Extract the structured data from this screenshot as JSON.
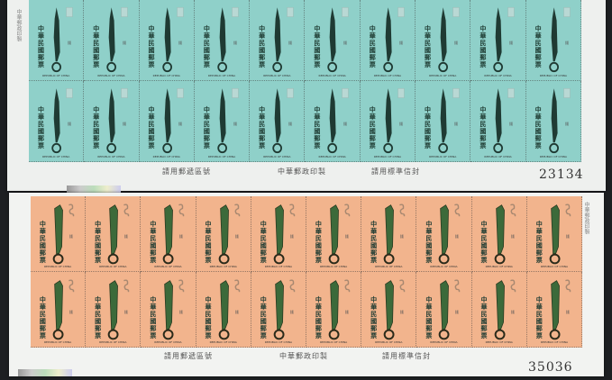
{
  "sheets": [
    {
      "color": "#8fd0c9",
      "ink": "#1f3a33",
      "stamp_text": "中華民國郵票",
      "stamp_subtext": "REPUBLIC OF CHINA",
      "margin_left": "請用郵遞區號",
      "margin_center": "中華郵政印製",
      "margin_right": "請用標準信封",
      "serial": "23134",
      "rows": 2,
      "cols": 10,
      "side_text": "中華郵政印製"
    },
    {
      "color": "#f2b48d",
      "ink": "#3c6a3a",
      "stamp_text": "中華民國郵票",
      "stamp_subtext": "REPUBLIC OF CHINA",
      "margin_left": "請用郵遞區號",
      "margin_center": "中華郵政印製",
      "margin_right": "請用標準信封",
      "serial": "35036",
      "rows": 2,
      "cols": 10,
      "side_text": "中華郵政印製"
    }
  ]
}
